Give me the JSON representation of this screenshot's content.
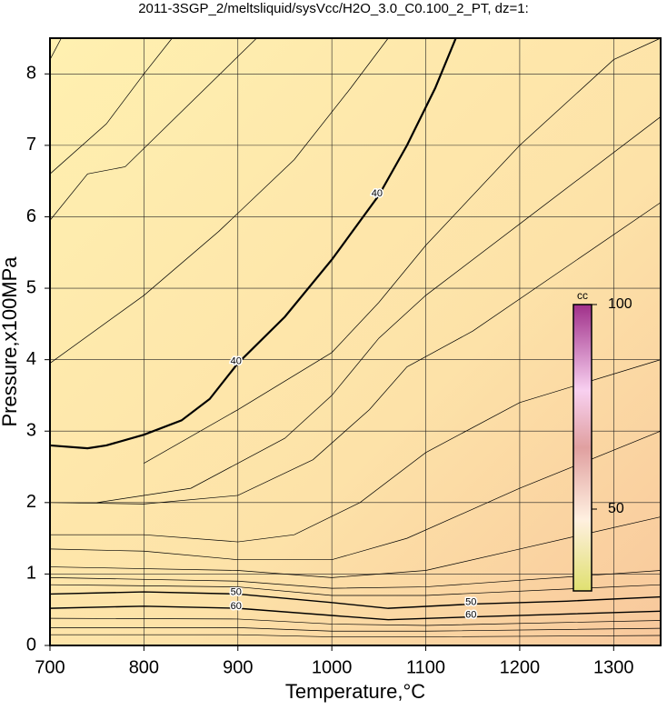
{
  "chart_data": {
    "type": "contour",
    "title": "2011-3SGP_2/meltsliquid/sysVcc/H2O_3.0_C0.100_2_PT, dz=1:",
    "x_label": "Temperature,°C",
    "y_label": "Pressure,x100MPa",
    "xlim": [
      700,
      1350
    ],
    "ylim": [
      0,
      8.5
    ],
    "xticks": [
      700,
      800,
      900,
      1000,
      1100,
      1200,
      1300
    ],
    "yticks": [
      0,
      1,
      2,
      3,
      4,
      5,
      6,
      7,
      8
    ],
    "grid": true,
    "contours": [
      {
        "level": 40,
        "x": [
          700,
          740,
          760,
          800,
          840,
          870,
          900,
          950,
          1000,
          1050,
          1080,
          1110,
          1132
        ],
        "y": [
          2.8,
          2.76,
          2.8,
          2.95,
          3.15,
          3.45,
          3.95,
          4.6,
          5.4,
          6.3,
          7.0,
          7.8,
          8.5
        ]
      },
      {
        "level": 50,
        "x": [
          700,
          800,
          900,
          1000,
          1060,
          1150,
          1250,
          1350
        ],
        "y": [
          0.72,
          0.75,
          0.72,
          0.6,
          0.52,
          0.58,
          0.62,
          0.68
        ]
      },
      {
        "level": 60,
        "x": [
          700,
          800,
          900,
          1000,
          1060,
          1150,
          1350
        ],
        "y": [
          0.52,
          0.55,
          0.52,
          0.42,
          0.36,
          0.4,
          0.48
        ]
      },
      {
        "x": [
          700,
          712
        ],
        "y": [
          8.2,
          8.5
        ]
      },
      {
        "x": [
          700,
          760,
          800,
          830
        ],
        "y": [
          6.6,
          7.3,
          8.0,
          8.5
        ]
      },
      {
        "x": [
          700,
          740,
          780,
          850,
          920
        ],
        "y": [
          5.95,
          6.6,
          6.7,
          7.6,
          8.5
        ]
      },
      {
        "x": [
          700,
          800,
          880,
          960,
          1020,
          1060
        ],
        "y": [
          3.95,
          4.9,
          5.8,
          6.8,
          7.8,
          8.5
        ]
      },
      {
        "x": [
          800,
          900,
          1000,
          1050,
          1100,
          1200,
          1300,
          1350
        ],
        "y": [
          2.55,
          3.3,
          4.1,
          4.8,
          5.6,
          7.0,
          8.2,
          8.5
        ]
      },
      {
        "x": [
          750,
          850,
          950,
          1000,
          1050,
          1100,
          1200,
          1350
        ],
        "y": [
          2.0,
          2.2,
          2.9,
          3.5,
          4.3,
          4.9,
          5.9,
          7.4
        ]
      },
      {
        "x": [
          700,
          800,
          900,
          980,
          1040,
          1080,
          1150,
          1250,
          1350
        ],
        "y": [
          2.0,
          1.98,
          2.1,
          2.6,
          3.3,
          3.9,
          4.4,
          5.3,
          6.2
        ]
      },
      {
        "x": [
          700,
          800,
          900,
          960,
          1030,
          1100,
          1200,
          1350
        ],
        "y": [
          1.55,
          1.55,
          1.45,
          1.55,
          2.0,
          2.7,
          3.4,
          4.0
        ]
      },
      {
        "x": [
          700,
          800,
          900,
          1000,
          1080,
          1200,
          1350
        ],
        "y": [
          1.35,
          1.32,
          1.2,
          1.2,
          1.5,
          2.2,
          3.0
        ]
      },
      {
        "x": [
          700,
          900,
          1000,
          1100,
          1200,
          1350
        ],
        "y": [
          1.1,
          1.05,
          0.95,
          1.05,
          1.35,
          1.8
        ]
      },
      {
        "x": [
          700,
          900,
          1000,
          1100,
          1350
        ],
        "y": [
          0.95,
          0.9,
          0.8,
          0.82,
          1.05
        ]
      },
      {
        "x": [
          700,
          900,
          1000,
          1100,
          1350
        ],
        "y": [
          0.85,
          0.82,
          0.7,
          0.7,
          0.85
        ]
      },
      {
        "x": [
          700,
          900,
          1000,
          1100,
          1350
        ],
        "y": [
          0.38,
          0.37,
          0.3,
          0.28,
          0.35
        ]
      },
      {
        "x": [
          700,
          900,
          1000,
          1100,
          1350
        ],
        "y": [
          0.25,
          0.25,
          0.2,
          0.2,
          0.24
        ]
      },
      {
        "x": [
          700,
          900,
          1000,
          1100,
          1350
        ],
        "y": [
          0.15,
          0.15,
          0.12,
          0.12,
          0.14
        ]
      }
    ],
    "colorbar": {
      "label": "cc",
      "lim": [
        30,
        100
      ],
      "ticks": [
        50,
        100
      ]
    }
  }
}
